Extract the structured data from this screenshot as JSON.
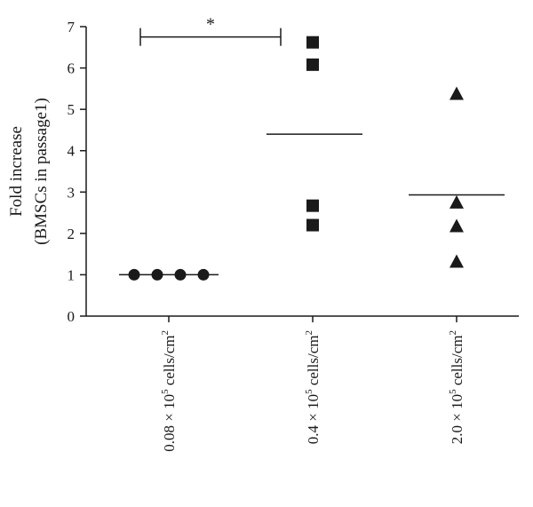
{
  "chart_data": {
    "type": "scatter",
    "ylabel_line1": "Fold increase",
    "ylabel_line2": "(BMSCs in passage1)",
    "ylim": [
      0,
      7
    ],
    "yticks": [
      0,
      1,
      2,
      3,
      4,
      5,
      6,
      7
    ],
    "groups": [
      {
        "label_prefix": "0.08 × 10",
        "label_exp": "5",
        "label_unit": " cells/cm",
        "label_unit_exp": "2",
        "marker": "circle",
        "values": [
          1.0,
          1.0,
          1.0,
          1.0
        ],
        "mean": 1.0
      },
      {
        "label_prefix": "0.4 × 10",
        "label_exp": "5",
        "label_unit": " cells/cm",
        "label_unit_exp": "2",
        "marker": "square",
        "values": [
          6.62,
          6.08,
          2.67,
          2.2
        ],
        "mean": 4.4
      },
      {
        "label_prefix": "2.0 × 10",
        "label_exp": "5",
        "label_unit": " cells/cm",
        "label_unit_exp": "2",
        "marker": "triangle",
        "values": [
          5.38,
          2.75,
          2.18,
          1.32
        ],
        "mean": 2.93
      }
    ],
    "significance": {
      "text": "*",
      "from_group": 0,
      "to_group": 1,
      "y": 6.75
    },
    "colors": {
      "marker": "#1a1a1a",
      "axis": "#1a1a1a"
    }
  }
}
